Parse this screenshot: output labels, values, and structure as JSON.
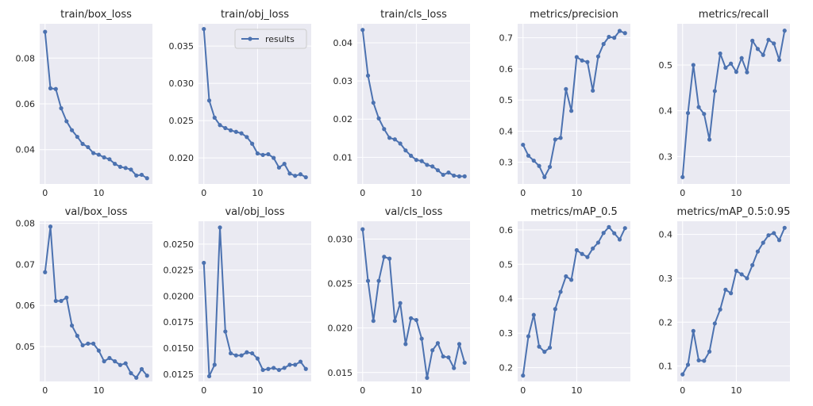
{
  "figure": {
    "line_color": "#4c72b0",
    "panel_bg": "#eaeaf2",
    "grid_color": "#ffffff"
  },
  "legend": {
    "label": "results",
    "placement": "top-right",
    "panel": "train/obj_loss"
  },
  "chart_data": [
    {
      "type": "line",
      "title": "train/box_loss",
      "xlabel": "",
      "ylabel": "",
      "x": [
        0,
        1,
        2,
        3,
        4,
        5,
        6,
        7,
        8,
        9,
        10,
        11,
        12,
        13,
        14,
        15,
        16,
        17,
        18,
        19
      ],
      "series": [
        {
          "name": "results",
          "values": [
            0.0915,
            0.0668,
            0.0665,
            0.0581,
            0.0524,
            0.0485,
            0.0456,
            0.0425,
            0.0411,
            0.0385,
            0.0378,
            0.0366,
            0.0358,
            0.0338,
            0.0325,
            0.032,
            0.0313,
            0.0287,
            0.029,
            0.0275
          ]
        }
      ],
      "xlim": [
        -1,
        20
      ],
      "ylim": [
        0.025,
        0.095
      ],
      "xticks": [
        0,
        10
      ],
      "yticks": [
        0.04,
        0.06,
        0.08
      ],
      "decimals": 2
    },
    {
      "type": "line",
      "title": "train/obj_loss",
      "xlabel": "",
      "ylabel": "",
      "x": [
        0,
        1,
        2,
        3,
        4,
        5,
        6,
        7,
        8,
        9,
        10,
        11,
        12,
        13,
        14,
        15,
        16,
        17,
        18,
        19
      ],
      "series": [
        {
          "name": "results",
          "values": [
            0.0373,
            0.0277,
            0.0254,
            0.0244,
            0.024,
            0.0237,
            0.0235,
            0.0233,
            0.0228,
            0.0219,
            0.0206,
            0.0204,
            0.0205,
            0.02,
            0.0187,
            0.0192,
            0.0179,
            0.0176,
            0.0178,
            0.0174
          ]
        }
      ],
      "xlim": [
        -1,
        20
      ],
      "ylim": [
        0.0165,
        0.038
      ],
      "xticks": [
        0,
        10
      ],
      "yticks": [
        0.02,
        0.025,
        0.03,
        0.035
      ],
      "decimals": 3
    },
    {
      "type": "line",
      "title": "train/cls_loss",
      "xlabel": "",
      "ylabel": "",
      "x": [
        0,
        1,
        2,
        3,
        4,
        5,
        6,
        7,
        8,
        9,
        10,
        11,
        12,
        13,
        14,
        15,
        16,
        17,
        18,
        19
      ],
      "series": [
        {
          "name": "results",
          "values": [
            0.0434,
            0.0314,
            0.0243,
            0.0202,
            0.0174,
            0.0151,
            0.0147,
            0.0136,
            0.0118,
            0.0104,
            0.0093,
            0.009,
            0.008,
            0.0076,
            0.0066,
            0.0054,
            0.006,
            0.0052,
            0.005,
            0.005
          ]
        }
      ],
      "xlim": [
        -1,
        20
      ],
      "ylim": [
        0.003,
        0.045
      ],
      "xticks": [
        0,
        10
      ],
      "yticks": [
        0.01,
        0.02,
        0.03,
        0.04
      ],
      "decimals": 2
    },
    {
      "type": "line",
      "title": "metrics/precision",
      "xlabel": "",
      "ylabel": "",
      "x": [
        0,
        1,
        2,
        3,
        4,
        5,
        6,
        7,
        8,
        9,
        10,
        11,
        12,
        13,
        14,
        15,
        16,
        17,
        18,
        19
      ],
      "series": [
        {
          "name": "results",
          "values": [
            0.356,
            0.321,
            0.305,
            0.288,
            0.252,
            0.285,
            0.373,
            0.378,
            0.535,
            0.465,
            0.638,
            0.627,
            0.622,
            0.53,
            0.64,
            0.68,
            0.703,
            0.7,
            0.722,
            0.715
          ]
        }
      ],
      "xlim": [
        -1,
        20
      ],
      "ylim": [
        0.23,
        0.745
      ],
      "xticks": [
        0,
        10
      ],
      "yticks": [
        0.3,
        0.4,
        0.5,
        0.6,
        0.7
      ],
      "decimals": 1
    },
    {
      "type": "line",
      "title": "metrics/recall",
      "xlabel": "",
      "ylabel": "",
      "x": [
        0,
        1,
        2,
        3,
        4,
        5,
        6,
        7,
        8,
        9,
        10,
        11,
        12,
        13,
        14,
        15,
        16,
        17,
        18,
        19
      ],
      "series": [
        {
          "name": "results",
          "values": [
            0.255,
            0.395,
            0.5,
            0.408,
            0.393,
            0.337,
            0.443,
            0.525,
            0.494,
            0.503,
            0.485,
            0.515,
            0.484,
            0.553,
            0.535,
            0.522,
            0.555,
            0.547,
            0.511,
            0.575
          ]
        }
      ],
      "xlim": [
        -1,
        20
      ],
      "ylim": [
        0.24,
        0.59
      ],
      "xticks": [
        0,
        10
      ],
      "yticks": [
        0.3,
        0.4,
        0.5
      ],
      "decimals": 1
    },
    {
      "type": "line",
      "title": "val/box_loss",
      "xlabel": "",
      "ylabel": "",
      "x": [
        0,
        1,
        2,
        3,
        4,
        5,
        6,
        7,
        8,
        9,
        10,
        11,
        12,
        13,
        14,
        15,
        16,
        17,
        18,
        19
      ],
      "series": [
        {
          "name": "results",
          "values": [
            0.0681,
            0.0792,
            0.0611,
            0.0611,
            0.0619,
            0.0551,
            0.0526,
            0.0503,
            0.0507,
            0.0507,
            0.049,
            0.0464,
            0.0472,
            0.0464,
            0.0455,
            0.0459,
            0.0435,
            0.0424,
            0.0445,
            0.0429
          ]
        }
      ],
      "xlim": [
        -1,
        20
      ],
      "ylim": [
        0.0415,
        0.0805
      ],
      "xticks": [
        0,
        10
      ],
      "yticks": [
        0.05,
        0.06,
        0.07,
        0.08
      ],
      "decimals": 2
    },
    {
      "type": "line",
      "title": "val/obj_loss",
      "xlabel": "",
      "ylabel": "",
      "x": [
        0,
        1,
        2,
        3,
        4,
        5,
        6,
        7,
        8,
        9,
        10,
        11,
        12,
        13,
        14,
        15,
        16,
        17,
        18,
        19
      ],
      "series": [
        {
          "name": "results",
          "values": [
            0.0232,
            0.0123,
            0.0134,
            0.0266,
            0.0166,
            0.0145,
            0.0143,
            0.0143,
            0.0146,
            0.0145,
            0.014,
            0.0129,
            0.013,
            0.0131,
            0.0129,
            0.0131,
            0.0134,
            0.0134,
            0.0137,
            0.013
          ]
        }
      ],
      "xlim": [
        -1,
        20
      ],
      "ylim": [
        0.0118,
        0.0272
      ],
      "xticks": [
        0,
        10
      ],
      "yticks": [
        0.0125,
        0.015,
        0.0175,
        0.02,
        0.0225,
        0.025
      ],
      "decimals": 4
    },
    {
      "type": "line",
      "title": "val/cls_loss",
      "xlabel": "",
      "ylabel": "",
      "x": [
        0,
        1,
        2,
        3,
        4,
        5,
        6,
        7,
        8,
        9,
        10,
        11,
        12,
        13,
        14,
        15,
        16,
        17,
        18,
        19
      ],
      "series": [
        {
          "name": "results",
          "values": [
            0.0311,
            0.0253,
            0.0208,
            0.0253,
            0.028,
            0.0278,
            0.0208,
            0.0228,
            0.0182,
            0.0211,
            0.0209,
            0.0188,
            0.0144,
            0.0175,
            0.0183,
            0.0168,
            0.0167,
            0.0155,
            0.0182,
            0.0161
          ]
        }
      ],
      "xlim": [
        -1,
        20
      ],
      "ylim": [
        0.014,
        0.032
      ],
      "xticks": [
        0,
        10
      ],
      "yticks": [
        0.015,
        0.02,
        0.025,
        0.03
      ],
      "decimals": 3
    },
    {
      "type": "line",
      "title": "metrics/mAP_0.5",
      "xlabel": "",
      "ylabel": "",
      "x": [
        0,
        1,
        2,
        3,
        4,
        5,
        6,
        7,
        8,
        9,
        10,
        11,
        12,
        13,
        14,
        15,
        16,
        17,
        18,
        19
      ],
      "series": [
        {
          "name": "results",
          "values": [
            0.177,
            0.291,
            0.353,
            0.261,
            0.246,
            0.258,
            0.37,
            0.42,
            0.465,
            0.455,
            0.541,
            0.53,
            0.521,
            0.546,
            0.563,
            0.591,
            0.608,
            0.59,
            0.572,
            0.605
          ]
        }
      ],
      "xlim": [
        -1,
        20
      ],
      "ylim": [
        0.16,
        0.625
      ],
      "xticks": [
        0,
        10
      ],
      "yticks": [
        0.2,
        0.3,
        0.4,
        0.5,
        0.6
      ],
      "decimals": 1
    },
    {
      "type": "line",
      "title": "metrics/mAP_0.5:0.95",
      "xlabel": "",
      "ylabel": "",
      "x": [
        0,
        1,
        2,
        3,
        4,
        5,
        6,
        7,
        8,
        9,
        10,
        11,
        12,
        13,
        14,
        15,
        16,
        17,
        18,
        19
      ],
      "series": [
        {
          "name": "results",
          "values": [
            0.081,
            0.103,
            0.18,
            0.113,
            0.112,
            0.133,
            0.197,
            0.229,
            0.274,
            0.266,
            0.317,
            0.309,
            0.3,
            0.33,
            0.361,
            0.381,
            0.398,
            0.403,
            0.387,
            0.415
          ]
        }
      ],
      "xlim": [
        -1,
        20
      ],
      "ylim": [
        0.065,
        0.43
      ],
      "xticks": [
        0,
        10
      ],
      "yticks": [
        0.1,
        0.2,
        0.3,
        0.4
      ],
      "decimals": 1
    }
  ]
}
